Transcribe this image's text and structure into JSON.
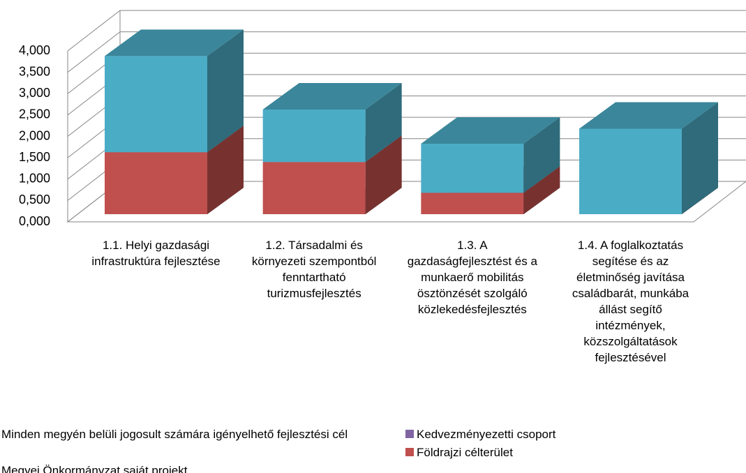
{
  "chart_data": {
    "type": "bar3d_stacked",
    "categories": [
      "1.1. Helyi gazdasági infrastruktúra fejlesztése",
      "1.2. Társadalmi és környezeti szempontból fenntartható turizmusfejlesztés",
      "1.3. A gazdaságfejlesztést és a munkaerő mobilitás ösztönzését szolgáló közlekedésfejlesztés",
      "1.4. A foglalkoztatás segítése és az életminőség javítása családbarát, munkába állást segítő intézmények, közszolgáltatások fejlesztésével"
    ],
    "series": [
      {
        "name": "Minden megyén belüli jogosult számára igényelhető fejlesztési cél",
        "color": "#9bbb59",
        "values": [
          0,
          0,
          0,
          0
        ]
      },
      {
        "name": "Kedvezményezetti csoport",
        "color": "#8064a2",
        "values": [
          0,
          0,
          0,
          0
        ]
      },
      {
        "name": "Földrajzi célterület",
        "color": "#c0504d",
        "values": [
          1.45,
          1.22,
          0.5,
          0
        ]
      },
      {
        "name": "Megyei Önkormányzat saját projekt",
        "color": "#4bacc6",
        "values": [
          2.25,
          1.23,
          1.15,
          2.0
        ]
      }
    ],
    "ylim": [
      0,
      4
    ],
    "yticks": [
      {
        "value": 0,
        "label": "0,000"
      },
      {
        "value": 0.5,
        "label": "0,500"
      },
      {
        "value": 1,
        "label": "1,000"
      },
      {
        "value": 1.5,
        "label": "1,500"
      },
      {
        "value": 2,
        "label": "2,000"
      },
      {
        "value": 2.5,
        "label": "2,500"
      },
      {
        "value": 3,
        "label": "3,000"
      },
      {
        "value": 3.5,
        "label": "3,500"
      },
      {
        "value": 4,
        "label": "4,000"
      }
    ],
    "grid": true
  }
}
